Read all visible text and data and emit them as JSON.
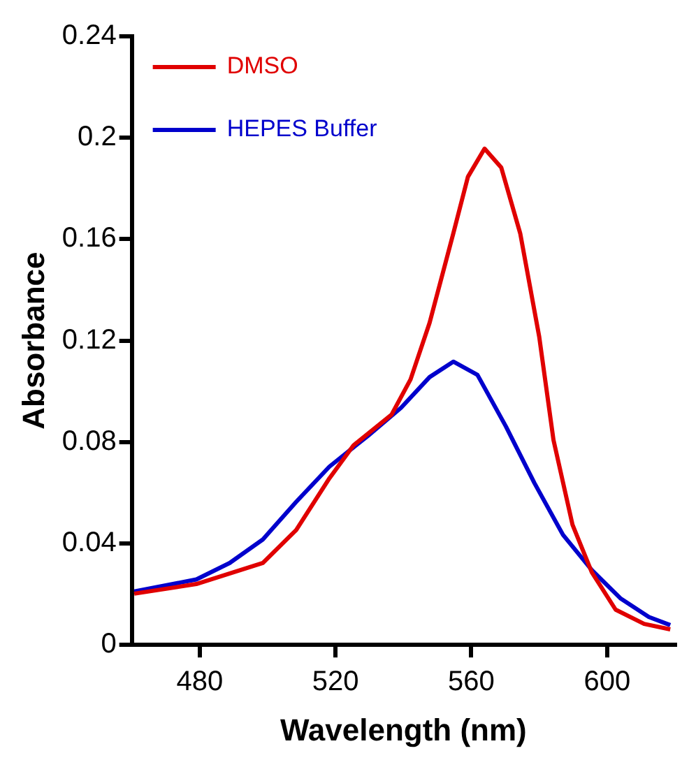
{
  "chart_data": {
    "type": "line",
    "xlabel": "Wavelength (nm)",
    "ylabel": "Absorbance",
    "xlim": [
      460,
      620
    ],
    "xticks": [
      480,
      520,
      560,
      600
    ],
    "ylim": [
      0,
      0.24
    ],
    "yticks": [
      0,
      0.04,
      0.08,
      0.12,
      0.16,
      0.2,
      0.24
    ],
    "grid": false,
    "legend": "top left",
    "marker": "none",
    "line_style": "solid",
    "series": [
      {
        "name": "DMSO",
        "color": "#e00000",
        "x": [
          460.7,
          479,
          498.6,
          508.4,
          518.2,
          525.3,
          536.5,
          542.1,
          547.7,
          554.7,
          559,
          563.9,
          568.8,
          574.4,
          580,
          584.2,
          589.8,
          595.5,
          602.5,
          610.9,
          618.6
        ],
        "values": [
          0.0202,
          0.024,
          0.0323,
          0.0453,
          0.0657,
          0.0787,
          0.0908,
          0.1047,
          0.127,
          0.1623,
          0.1846,
          0.1957,
          0.1883,
          0.1623,
          0.1215,
          0.0808,
          0.0474,
          0.0286,
          0.0139,
          0.0083,
          0.0061
        ]
      },
      {
        "name": "HEPES Buffer",
        "color": "#0000cc",
        "x": [
          460.7,
          479,
          488.8,
          498.6,
          508.4,
          518.2,
          529.5,
          539.3,
          547.7,
          554.7,
          561.8,
          570.2,
          578.6,
          587,
          595.5,
          603.9,
          612.3,
          618.6
        ],
        "values": [
          0.0211,
          0.0258,
          0.0323,
          0.0416,
          0.0564,
          0.0703,
          0.0824,
          0.0935,
          0.1056,
          0.1117,
          0.1065,
          0.0861,
          0.0638,
          0.0434,
          0.0295,
          0.0184,
          0.011,
          0.0078
        ]
      }
    ]
  }
}
